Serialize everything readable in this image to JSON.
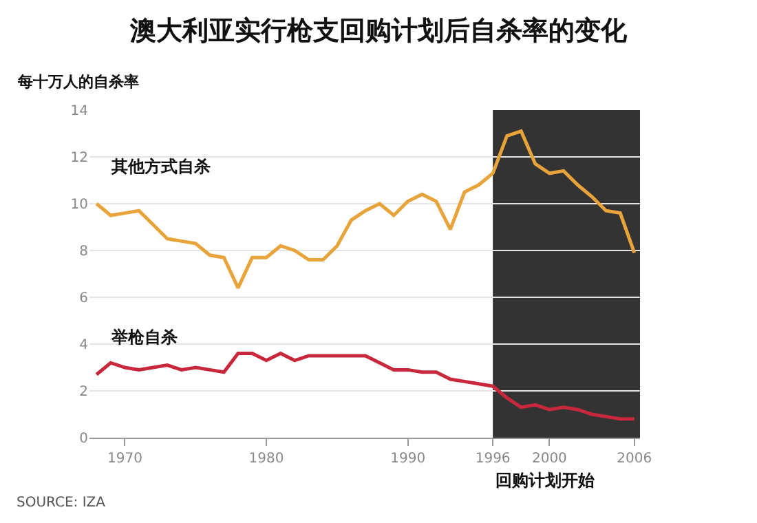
{
  "chart_data": {
    "type": "line",
    "title": "澳大利亚实行枪支回购计划后自杀率的变化",
    "ylabel": "每十万人的自杀率",
    "x": [
      1968,
      1969,
      1970,
      1971,
      1972,
      1973,
      1974,
      1975,
      1976,
      1977,
      1978,
      1979,
      1980,
      1981,
      1982,
      1983,
      1984,
      1985,
      1986,
      1987,
      1988,
      1989,
      1990,
      1991,
      1992,
      1993,
      1994,
      1995,
      1996,
      1997,
      1998,
      1999,
      2000,
      2001,
      2002,
      2003,
      2004,
      2005,
      2006
    ],
    "series": [
      {
        "name": "其他方式自杀",
        "color": "#e8a33a",
        "values": [
          10.0,
          9.5,
          9.6,
          9.7,
          9.1,
          8.5,
          8.4,
          8.3,
          7.8,
          7.7,
          6.4,
          7.7,
          7.7,
          8.2,
          8.0,
          7.6,
          7.6,
          8.2,
          9.3,
          9.7,
          10.0,
          9.5,
          10.1,
          10.4,
          10.1,
          8.9,
          10.5,
          10.8,
          11.3,
          12.9,
          13.1,
          11.7,
          11.3,
          11.4,
          10.8,
          10.3,
          9.7,
          9.6,
          7.9
        ]
      },
      {
        "name": "举枪自杀",
        "color": "#c8283c",
        "values": [
          2.7,
          3.2,
          3.0,
          2.9,
          3.0,
          3.1,
          2.9,
          3.0,
          2.9,
          2.8,
          3.6,
          3.6,
          3.3,
          3.6,
          3.3,
          3.5,
          3.5,
          3.5,
          3.5,
          3.5,
          3.2,
          2.9,
          2.9,
          2.8,
          2.8,
          2.5,
          2.4,
          2.3,
          2.2,
          1.7,
          1.3,
          1.4,
          1.2,
          1.3,
          1.2,
          1.0,
          0.9,
          0.8,
          0.8
        ]
      }
    ],
    "xlim": [
      1967.5,
      2006.4
    ],
    "ylim": [
      0,
      14
    ],
    "xticks": [
      1970,
      1980,
      1990,
      1996,
      2000,
      2006
    ],
    "yticks": [
      0,
      2,
      4,
      6,
      8,
      10,
      12,
      14
    ],
    "bands": [
      {
        "axis": "x",
        "from": 1996,
        "to": 2006.4,
        "label": "回购计划开始",
        "color": "#333333"
      }
    ],
    "annotations": [
      "SOURCE: IZA"
    ],
    "grid": "y",
    "legend": false,
    "marker": "none",
    "line_style": "solid"
  }
}
